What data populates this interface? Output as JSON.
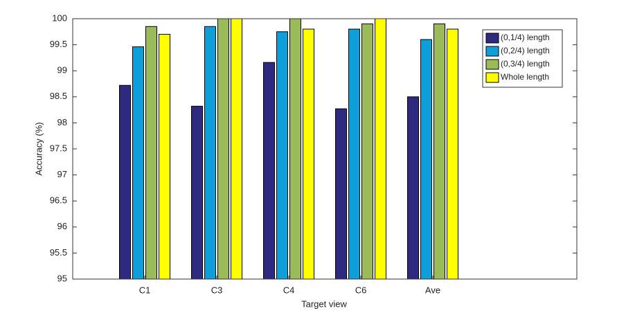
{
  "chart_data": {
    "type": "bar",
    "xlabel": "Target view",
    "ylabel": "Accuracy (%)",
    "categories": [
      "C1",
      "C3",
      "C4",
      "C6",
      "Ave"
    ],
    "series": [
      {
        "name": "(0,1/4) length",
        "color": "#2e2a7f",
        "values": [
          98.72,
          98.32,
          99.16,
          98.27,
          98.5
        ]
      },
      {
        "name": "(0,2/4) length",
        "color": "#0f9fd8",
        "values": [
          99.46,
          99.85,
          99.75,
          99.8,
          99.6
        ]
      },
      {
        "name": "(0,3/4) length",
        "color": "#9bbb59",
        "values": [
          99.85,
          100,
          100,
          99.9,
          99.9
        ]
      },
      {
        "name": "Whole length",
        "color": "#ffff00",
        "values": [
          99.7,
          100,
          99.8,
          100,
          99.8
        ]
      }
    ],
    "ylim": [
      95,
      100
    ],
    "yticks": [
      95,
      95.5,
      96,
      96.5,
      97,
      97.5,
      98,
      98.5,
      99,
      99.5,
      100
    ],
    "legend": "upper right"
  }
}
